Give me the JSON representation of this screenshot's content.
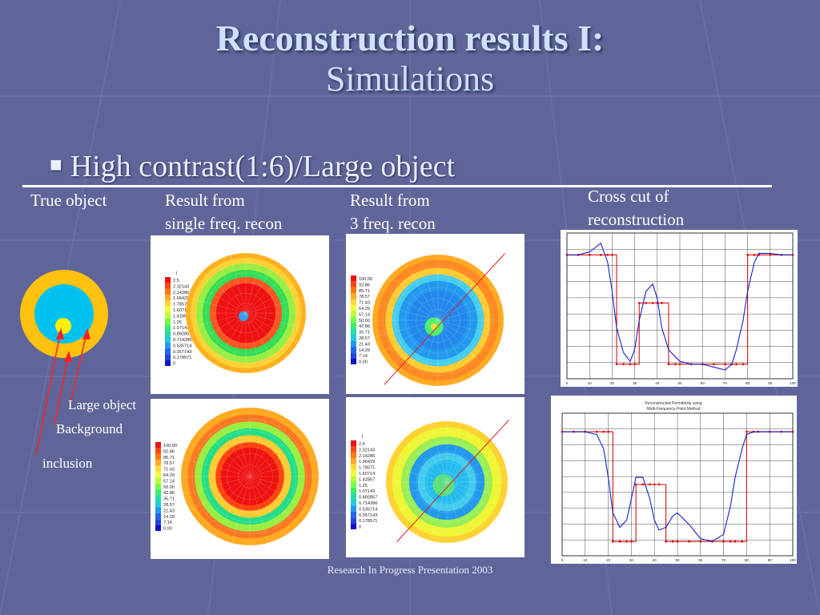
{
  "slide": {
    "title_line1": "Reconstruction results I:",
    "title_line2": "Simulations",
    "bullet": "High contrast(1:6)/Large object",
    "footer": "Research In Progress Presentation 2003"
  },
  "labels": {
    "true_object": "True object",
    "single_line1": "Result from",
    "single_line2": "single freq. recon",
    "three_line1": "Result from",
    "three_line2": "3 freq. recon",
    "cross_line1": "Cross cut of",
    "cross_line2": "reconstruction",
    "large_object": "Large object",
    "background": "Background",
    "inclusion": "inclusion"
  },
  "legend_a": [
    "2.5",
    "2.32143",
    "2.14286",
    "1.96429",
    "1.78571",
    "1.60714",
    "1.42857",
    "1.25",
    "1.07143",
    "0.892857",
    "0.714286",
    "0.535714",
    "0.357143",
    "0.178571",
    "0"
  ],
  "legend_b": [
    "100.00",
    "92.86",
    "85.71",
    "78.57",
    "71.43",
    "64.29",
    "57.14",
    "50.00",
    "42.86",
    "35.71",
    "28.57",
    "21.43",
    "14.29",
    "7.14",
    "0.00"
  ],
  "legend_var": "l",
  "plot2_title1": "Reconstructed Permittivity using",
  "plot2_title2": "Multi-Frequency-Point Method",
  "chart_data": [
    {
      "type": "line",
      "x": [
        0,
        5,
        10,
        15,
        18,
        20,
        22,
        25,
        28,
        30,
        32,
        35,
        38,
        40,
        42,
        45,
        48,
        50,
        55,
        60,
        65,
        70,
        73,
        75,
        78,
        80,
        83,
        85,
        90,
        95,
        100
      ],
      "series": [
        {
          "values": [
            0.85,
            0.85,
            0.85,
            0.85,
            0.85,
            0.85,
            0.1,
            0.1,
            0.1,
            0.1,
            0.52,
            0.52,
            0.52,
            0.52,
            0.52,
            0.1,
            0.1,
            0.1,
            0.1,
            0.1,
            0.1,
            0.1,
            0.1,
            0.1,
            0.1,
            0.85,
            0.85,
            0.85,
            0.85,
            0.85,
            0.85
          ]
        },
        {
          "values": [
            0.85,
            0.85,
            0.87,
            0.93,
            0.8,
            0.6,
            0.35,
            0.18,
            0.12,
            0.2,
            0.4,
            0.6,
            0.65,
            0.55,
            0.35,
            0.2,
            0.15,
            0.12,
            0.1,
            0.1,
            0.08,
            0.06,
            0.1,
            0.2,
            0.4,
            0.6,
            0.8,
            0.86,
            0.86,
            0.85,
            0.85
          ]
        }
      ],
      "xlim": [
        0,
        100
      ],
      "ylim": [
        0,
        1
      ],
      "grid": true
    },
    {
      "type": "line",
      "title": "Reconstructed Permittivity using Multi-Frequency-Point Method",
      "x": [
        0,
        5,
        10,
        15,
        18,
        20,
        22,
        25,
        28,
        30,
        32,
        35,
        38,
        40,
        42,
        45,
        48,
        50,
        55,
        60,
        65,
        70,
        73,
        75,
        78,
        80,
        83,
        85,
        90,
        95,
        100
      ],
      "series": [
        {
          "values": [
            0.87,
            0.87,
            0.87,
            0.87,
            0.87,
            0.87,
            0.1,
            0.1,
            0.1,
            0.1,
            0.5,
            0.5,
            0.5,
            0.5,
            0.5,
            0.1,
            0.1,
            0.1,
            0.1,
            0.1,
            0.1,
            0.1,
            0.1,
            0.1,
            0.1,
            0.87,
            0.87,
            0.87,
            0.87,
            0.87,
            0.87
          ]
        },
        {
          "values": [
            0.87,
            0.87,
            0.87,
            0.85,
            0.75,
            0.55,
            0.3,
            0.2,
            0.25,
            0.4,
            0.55,
            0.55,
            0.4,
            0.25,
            0.18,
            0.2,
            0.28,
            0.3,
            0.22,
            0.12,
            0.1,
            0.15,
            0.35,
            0.55,
            0.75,
            0.85,
            0.87,
            0.87,
            0.87,
            0.87,
            0.87
          ]
        }
      ],
      "xlim": [
        0,
        100
      ],
      "ylim": [
        0,
        1
      ],
      "grid": true
    }
  ]
}
